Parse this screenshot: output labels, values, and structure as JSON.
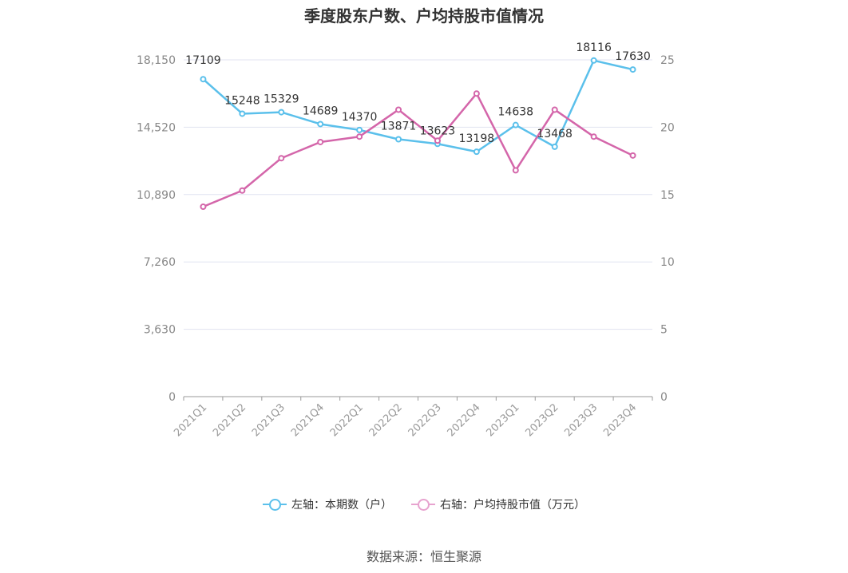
{
  "title": "季度股东户数、户均持股市值情况",
  "source": "数据来源：恒生聚源",
  "legend": {
    "left": "左轴：本期数（户）",
    "right": "右轴：户均持股市值（万元）"
  },
  "colors": {
    "left_series": "#5bc0eb",
    "right_series": "#d466aa",
    "right_legend": "#e7a3cf",
    "grid": "#e0e3f0",
    "axis": "#999999"
  },
  "chart_data": {
    "type": "line",
    "title": "季度股东户数、户均持股市值情况",
    "categories": [
      "2021Q1",
      "2021Q2",
      "2021Q3",
      "2021Q4",
      "2022Q1",
      "2022Q2",
      "2022Q3",
      "2022Q4",
      "2023Q1",
      "2023Q2",
      "2023Q3",
      "2023Q4"
    ],
    "y_left": {
      "ticks": [
        "0",
        "3,630",
        "7,260",
        "10,890",
        "14,520",
        "18,150"
      ],
      "range": [
        0,
        18150
      ]
    },
    "y_right": {
      "ticks": [
        "0",
        "5",
        "10",
        "15",
        "20",
        "25"
      ],
      "range": [
        0,
        25
      ]
    },
    "grid": true,
    "legend_position": "bottom",
    "series": [
      {
        "name": "左轴：本期数（户）",
        "axis": "left",
        "labeled": true,
        "values": [
          17109,
          15248,
          15329,
          14689,
          14370,
          13871,
          13623,
          13198,
          14638,
          13468,
          18116,
          17630
        ]
      },
      {
        "name": "右轴：户均持股市值（万元）",
        "axis": "right",
        "labeled": false,
        "values": [
          14.1,
          15.3,
          17.7,
          18.9,
          19.3,
          21.3,
          19.0,
          22.5,
          16.8,
          21.3,
          19.3,
          17.9
        ]
      }
    ]
  }
}
